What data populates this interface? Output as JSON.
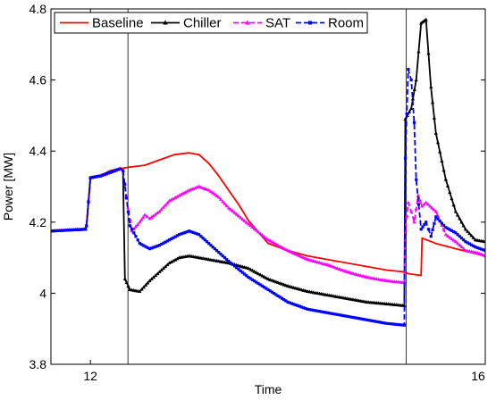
{
  "chart_data": {
    "type": "line",
    "title": "",
    "xlabel": "Time",
    "ylabel": "Power [MW]",
    "xlim": [
      11.6,
      16.0
    ],
    "ylim": [
      3.8,
      4.8
    ],
    "xticks": [
      12,
      16
    ],
    "yticks": [
      3.8,
      4.0,
      4.2,
      4.4,
      4.6,
      4.8
    ],
    "ytick_labels": [
      "3.8",
      "4",
      "4.2",
      "4.4",
      "4.6",
      "4.8"
    ],
    "xtick_labels": [
      "12",
      "16"
    ],
    "grid": false,
    "legend_position": "top-left",
    "event_lines_x": [
      12.38,
      15.2
    ],
    "series": [
      {
        "name": "Baseline",
        "color": "#ff0000",
        "marker": "none",
        "dash": "solid",
        "x": [
          11.6,
          11.95,
          11.96,
          12.0,
          12.1,
          12.2,
          12.28,
          12.4,
          12.55,
          12.7,
          12.85,
          13.0,
          13.1,
          13.2,
          13.3,
          13.4,
          13.5,
          13.6,
          13.8,
          14.0,
          14.2,
          14.5,
          14.8,
          15.0,
          15.18,
          15.22,
          15.35,
          15.36,
          15.5,
          15.7,
          15.85,
          16.0
        ],
        "y": [
          4.175,
          4.18,
          4.19,
          4.325,
          4.33,
          4.345,
          4.35,
          4.355,
          4.36,
          4.375,
          4.39,
          4.395,
          4.39,
          4.365,
          4.33,
          4.29,
          4.25,
          4.205,
          4.14,
          4.12,
          4.105,
          4.09,
          4.075,
          4.065,
          4.06,
          4.055,
          4.05,
          4.155,
          4.14,
          4.125,
          4.115,
          4.105
        ]
      },
      {
        "name": "Chiller",
        "color": "#000000",
        "marker": "triangle",
        "dash": "solid",
        "x": [
          11.6,
          11.95,
          11.96,
          12.0,
          12.1,
          12.2,
          12.3,
          12.33,
          12.35,
          12.4,
          12.5,
          12.6,
          12.7,
          12.8,
          12.9,
          13.0,
          13.1,
          13.2,
          13.4,
          13.6,
          13.8,
          14.0,
          14.2,
          14.4,
          14.6,
          14.8,
          15.0,
          15.18,
          15.19,
          15.25,
          15.3,
          15.35,
          15.4,
          15.45,
          15.5,
          15.6,
          15.7,
          15.8,
          15.9,
          16.0
        ],
        "y": [
          4.175,
          4.18,
          4.19,
          4.325,
          4.33,
          4.34,
          4.35,
          4.345,
          4.04,
          4.01,
          4.005,
          4.035,
          4.06,
          4.085,
          4.1,
          4.105,
          4.1,
          4.095,
          4.085,
          4.07,
          4.04,
          4.02,
          4.005,
          3.995,
          3.985,
          3.975,
          3.97,
          3.965,
          4.49,
          4.52,
          4.6,
          4.76,
          4.77,
          4.58,
          4.45,
          4.32,
          4.23,
          4.18,
          4.15,
          4.145
        ]
      },
      {
        "name": "SAT",
        "color": "#ff00ff",
        "marker": "triangle",
        "dash": "dashed",
        "x": [
          11.6,
          11.95,
          11.96,
          12.0,
          12.1,
          12.2,
          12.3,
          12.33,
          12.38,
          12.42,
          12.5,
          12.55,
          12.6,
          12.7,
          12.8,
          12.9,
          13.0,
          13.1,
          13.2,
          13.3,
          13.4,
          13.6,
          13.8,
          14.0,
          14.2,
          14.4,
          14.6,
          14.8,
          15.0,
          15.18,
          15.19,
          15.22,
          15.25,
          15.28,
          15.32,
          15.36,
          15.4,
          15.5,
          15.6,
          15.7,
          15.8,
          15.9,
          16.0
        ],
        "y": [
          4.175,
          4.18,
          4.19,
          4.325,
          4.33,
          4.34,
          4.35,
          4.345,
          4.24,
          4.175,
          4.2,
          4.22,
          4.21,
          4.23,
          4.26,
          4.275,
          4.29,
          4.3,
          4.29,
          4.27,
          4.24,
          4.195,
          4.15,
          4.12,
          4.095,
          4.08,
          4.06,
          4.045,
          4.035,
          4.03,
          4.18,
          4.255,
          4.23,
          4.2,
          4.275,
          4.245,
          4.255,
          4.23,
          4.165,
          4.145,
          4.12,
          4.115,
          4.105
        ]
      },
      {
        "name": "Room",
        "color": "#0000ff",
        "marker": "square",
        "dash": "dashed",
        "x": [
          11.6,
          11.95,
          11.96,
          12.0,
          12.1,
          12.2,
          12.3,
          12.33,
          12.4,
          12.5,
          12.6,
          12.7,
          12.8,
          12.9,
          13.0,
          13.1,
          13.2,
          13.4,
          13.6,
          13.8,
          14.0,
          14.2,
          14.4,
          14.6,
          14.8,
          15.0,
          15.18,
          15.19,
          15.22,
          15.25,
          15.28,
          15.3,
          15.35,
          15.4,
          15.45,
          15.5,
          15.6,
          15.7,
          15.8,
          15.9,
          16.0
        ],
        "y": [
          4.175,
          4.18,
          4.19,
          4.325,
          4.33,
          4.34,
          4.35,
          4.345,
          4.19,
          4.14,
          4.125,
          4.135,
          4.15,
          4.165,
          4.175,
          4.165,
          4.14,
          4.09,
          4.045,
          4.01,
          3.975,
          3.955,
          3.945,
          3.935,
          3.925,
          3.915,
          3.91,
          4.38,
          4.63,
          4.6,
          4.48,
          4.32,
          4.18,
          4.2,
          4.16,
          4.215,
          4.185,
          4.17,
          4.145,
          4.13,
          4.12
        ]
      }
    ]
  }
}
